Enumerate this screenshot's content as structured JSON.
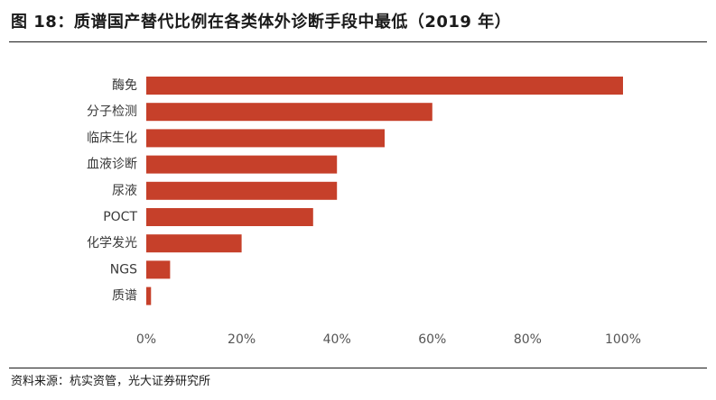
{
  "figure": {
    "title": "图 18：质谱国产替代比例在各类体外诊断手段中最低（2019 年）",
    "source": "资料来源：杭实资管，光大证券研究所"
  },
  "colors": {
    "bar": "#C6402A",
    "rule": "#1a1a1a"
  },
  "chart_data": {
    "type": "bar",
    "orientation": "horizontal",
    "categories": [
      "酶免",
      "分子检测",
      "临床生化",
      "血液诊断",
      "尿液",
      "POCT",
      "化学发光",
      "NGS",
      "质谱"
    ],
    "values": [
      1.0,
      0.6,
      0.5,
      0.4,
      0.4,
      0.35,
      0.2,
      0.05,
      0.01
    ],
    "xlim": [
      0,
      1
    ],
    "xticks": [
      0,
      0.2,
      0.4,
      0.6,
      0.8,
      1.0
    ],
    "xtick_labels": [
      "0%",
      "20%",
      "40%",
      "60%",
      "80%",
      "100%"
    ],
    "grid": false,
    "legend": "none",
    "title": "",
    "xlabel": "",
    "ylabel": ""
  }
}
